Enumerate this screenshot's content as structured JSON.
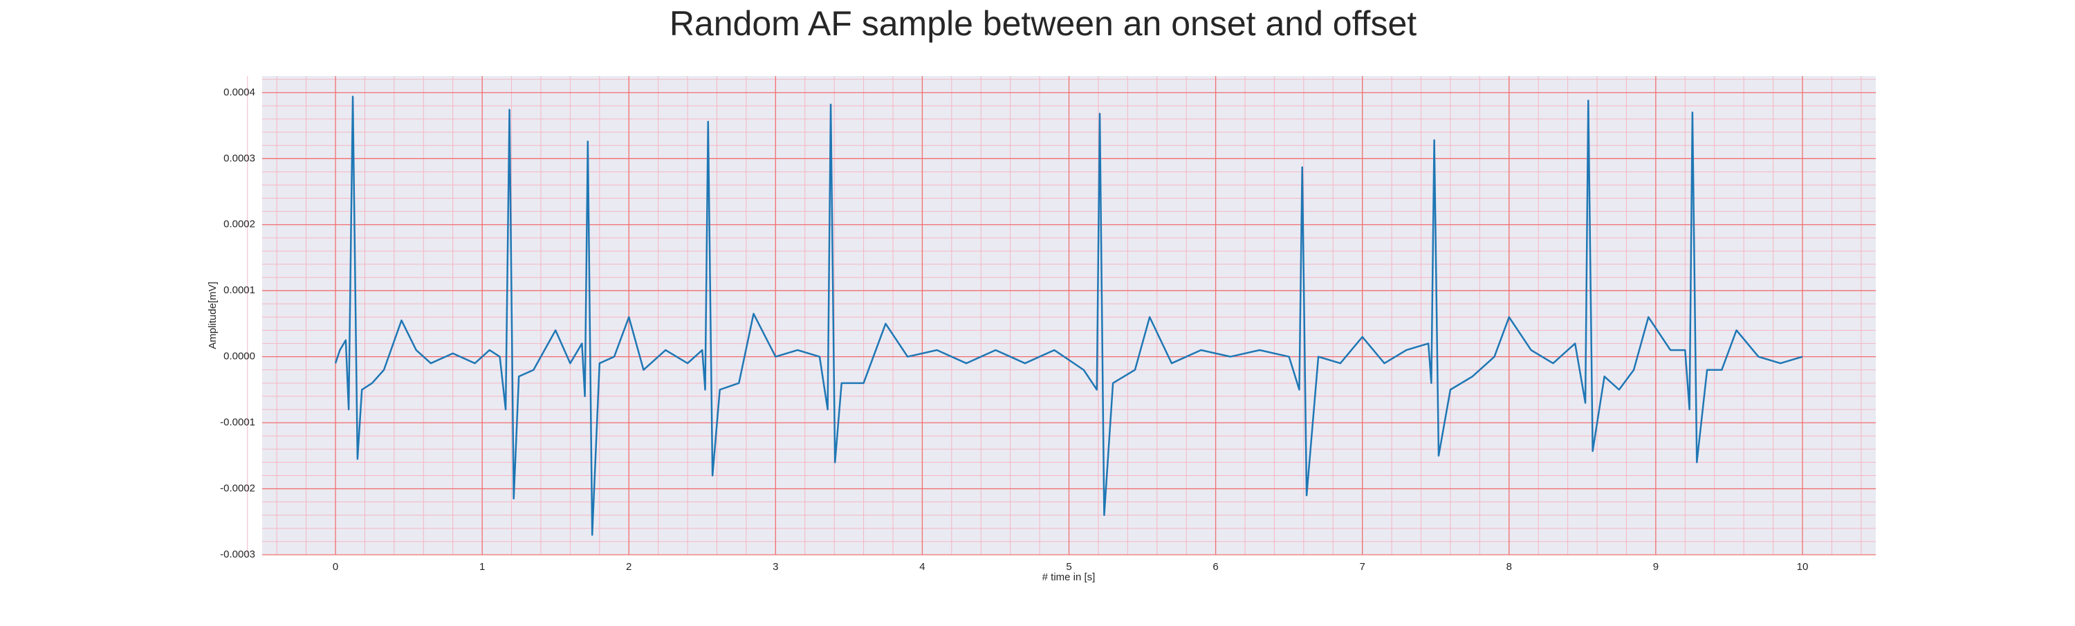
{
  "chart_data": {
    "type": "line",
    "title": "Random AF sample between an onset and offset",
    "xlabel": "# time in [s]",
    "ylabel": "Amplitude[mV]",
    "color": "#1f77b4",
    "x": [
      0,
      0.03,
      0.07,
      0.09,
      0.118,
      0.15,
      0.18,
      0.25,
      0.33,
      0.45,
      0.55,
      0.65,
      0.8,
      0.95,
      1.05,
      1.12,
      1.16,
      1.186,
      1.215,
      1.25,
      1.35,
      1.5,
      1.6,
      1.68,
      1.7,
      1.72,
      1.75,
      1.8,
      1.9,
      2.0,
      2.1,
      2.25,
      2.4,
      2.5,
      2.52,
      2.54,
      2.57,
      2.62,
      2.75,
      2.85,
      3.0,
      3.15,
      3.3,
      3.355,
      3.376,
      3.405,
      3.45,
      3.6,
      3.75,
      3.9,
      4.1,
      4.3,
      4.5,
      4.7,
      4.9,
      5.1,
      5.19,
      5.21,
      5.24,
      5.3,
      5.45,
      5.55,
      5.7,
      5.9,
      6.1,
      6.3,
      6.5,
      6.57,
      6.59,
      6.62,
      6.7,
      6.85,
      7.0,
      7.15,
      7.3,
      7.45,
      7.47,
      7.49,
      7.52,
      7.6,
      7.75,
      7.9,
      8.0,
      8.15,
      8.3,
      8.45,
      8.52,
      8.54,
      8.57,
      8.65,
      8.75,
      8.85,
      8.95,
      9.1,
      9.2,
      9.23,
      9.25,
      9.28,
      9.35,
      9.45,
      9.55,
      9.7,
      9.85,
      10.0
    ],
    "values": [
      -1e-05,
      1e-05,
      2.5e-05,
      -8e-05,
      0.000394,
      -0.000155,
      -5e-05,
      -4e-05,
      -2e-05,
      5.5e-05,
      1e-05,
      -1e-05,
      5e-06,
      -1e-05,
      1e-05,
      0,
      -8e-05,
      0.000374,
      -0.000215,
      -3e-05,
      -2e-05,
      4e-05,
      -1e-05,
      2e-05,
      -6e-05,
      0.000326,
      -0.00027,
      -1e-05,
      0,
      6e-05,
      -2e-05,
      1e-05,
      -1e-05,
      1e-05,
      -5e-05,
      0.000356,
      -0.00018,
      -5e-05,
      -4e-05,
      6.5e-05,
      0,
      1e-05,
      0,
      -8e-05,
      0.000382,
      -0.00016,
      -4e-05,
      -4e-05,
      5e-05,
      0,
      1e-05,
      -1e-05,
      1e-05,
      -1e-05,
      1e-05,
      -2e-05,
      -5e-05,
      0.000368,
      -0.00024,
      -4e-05,
      -2e-05,
      6e-05,
      -1e-05,
      1e-05,
      0,
      1e-05,
      0,
      -5e-05,
      0.000287,
      -0.00021,
      0,
      -1e-05,
      3e-05,
      -1e-05,
      1e-05,
      2e-05,
      -4e-05,
      0.000328,
      -0.00015,
      -5e-05,
      -3e-05,
      0,
      6e-05,
      1e-05,
      -1e-05,
      2e-05,
      -7e-05,
      0.000388,
      -0.000143,
      -3e-05,
      -5e-05,
      -2e-05,
      6e-05,
      1e-05,
      1e-05,
      -8e-05,
      0.00037,
      -0.00016,
      -2e-05,
      -2e-05,
      4e-05,
      0,
      -1e-05,
      0
    ],
    "xlim": [
      -0.5,
      10.5
    ],
    "xticks": [
      0,
      1,
      2,
      3,
      4,
      5,
      6,
      7,
      8,
      9,
      10
    ],
    "ylim": [
      -0.0003,
      0.000425
    ],
    "yticks": [
      -0.0003,
      -0.0002,
      -0.0001,
      {
        "value": 0,
        "label": "0.0000"
      },
      0.0001,
      0.0002,
      0.0003,
      0.0004
    ],
    "grid": true,
    "minor_grid": true
  }
}
